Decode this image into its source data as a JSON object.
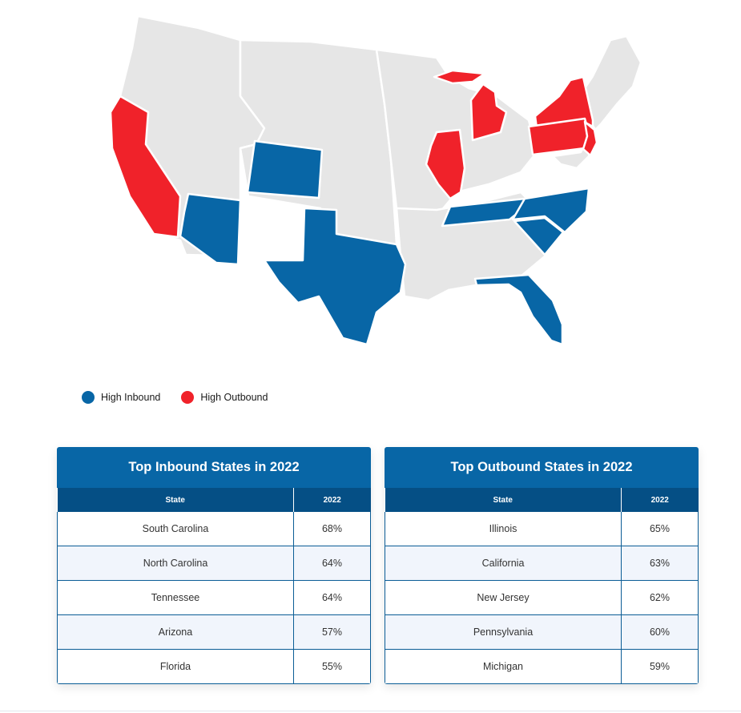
{
  "colors": {
    "inbound": "#0866a6",
    "outbound": "#f0222a",
    "neutral": "#e6e6e6"
  },
  "map": {
    "regions": [
      {
        "name": "western-us",
        "category": "neutral"
      },
      {
        "name": "central-us",
        "category": "neutral"
      },
      {
        "name": "midwest",
        "category": "neutral"
      },
      {
        "name": "southeast",
        "category": "neutral"
      },
      {
        "name": "new-england",
        "category": "neutral"
      },
      {
        "name": "california",
        "category": "outbound"
      },
      {
        "name": "arizona",
        "category": "inbound"
      },
      {
        "name": "colorado",
        "category": "inbound"
      },
      {
        "name": "texas",
        "category": "inbound"
      },
      {
        "name": "illinois",
        "category": "outbound"
      },
      {
        "name": "michigan",
        "category": "outbound"
      },
      {
        "name": "new-york",
        "category": "outbound"
      },
      {
        "name": "pennsylvania",
        "category": "outbound"
      },
      {
        "name": "new-jersey",
        "category": "outbound"
      },
      {
        "name": "tennessee",
        "category": "inbound"
      },
      {
        "name": "north-carolina",
        "category": "inbound"
      },
      {
        "name": "south-carolina",
        "category": "inbound"
      },
      {
        "name": "florida",
        "category": "inbound"
      }
    ]
  },
  "legend": [
    {
      "label": "High Inbound",
      "color": "#0866a6"
    },
    {
      "label": "High Outbound",
      "color": "#f0222a"
    }
  ],
  "inbound_table": {
    "title": "Top Inbound States in 2022",
    "columns": [
      "State",
      "2022"
    ],
    "rows": [
      [
        "South Carolina",
        "68%"
      ],
      [
        "North Carolina",
        "64%"
      ],
      [
        "Tennessee",
        "64%"
      ],
      [
        "Arizona",
        "57%"
      ],
      [
        "Florida",
        "55%"
      ]
    ]
  },
  "outbound_table": {
    "title": "Top Outbound States in 2022",
    "columns": [
      "State",
      "2022"
    ],
    "rows": [
      [
        "Illinois",
        "65%"
      ],
      [
        "California",
        "63%"
      ],
      [
        "New Jersey",
        "62%"
      ],
      [
        "Pennsylvania",
        "60%"
      ],
      [
        "Michigan",
        "59%"
      ]
    ]
  }
}
